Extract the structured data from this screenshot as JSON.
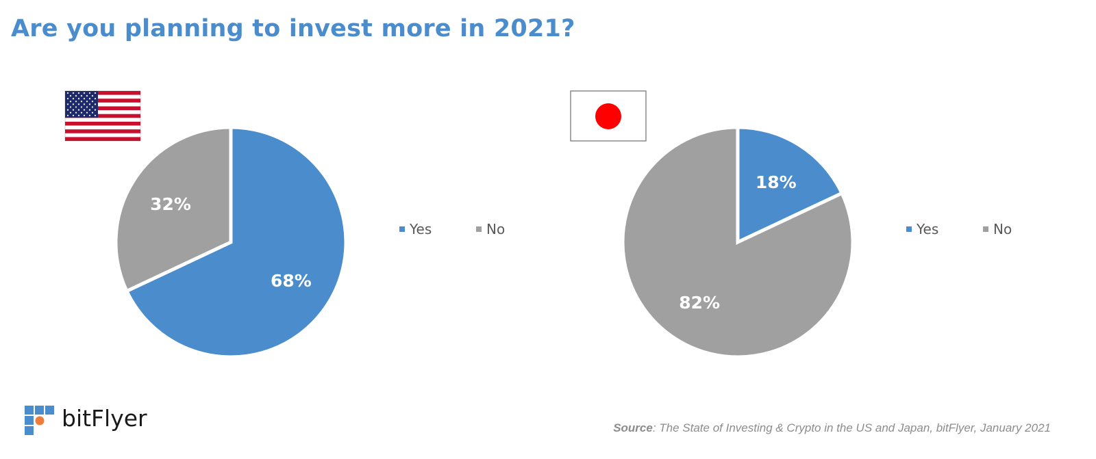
{
  "title": "Are you planning to invest more in 2021?",
  "colors": {
    "yes": "#4a8ccc",
    "no": "#a0a0a0",
    "title": "#4a8ccc",
    "brand_orange": "#f07c3c"
  },
  "flags": [
    "us-flag-icon",
    "japan-flag-icon"
  ],
  "chart_data": [
    {
      "type": "pie",
      "categories": [
        "Yes",
        "No"
      ],
      "values": [
        68,
        32
      ],
      "labels": [
        "68%",
        "32%"
      ],
      "legend": [
        "Yes",
        "No"
      ],
      "legend_position": "right"
    },
    {
      "type": "pie",
      "categories": [
        "Yes",
        "No"
      ],
      "values": [
        18,
        82
      ],
      "labels": [
        "18%",
        "82%"
      ],
      "legend": [
        "Yes",
        "No"
      ],
      "legend_position": "right"
    }
  ],
  "brand": {
    "name": "bitFlyer",
    "logo": "bitflyer-logo-icon"
  },
  "source": {
    "label": "Source",
    "text": ": The State of Investing & Crypto in the US and Japan, bitFlyer, January 2021"
  }
}
